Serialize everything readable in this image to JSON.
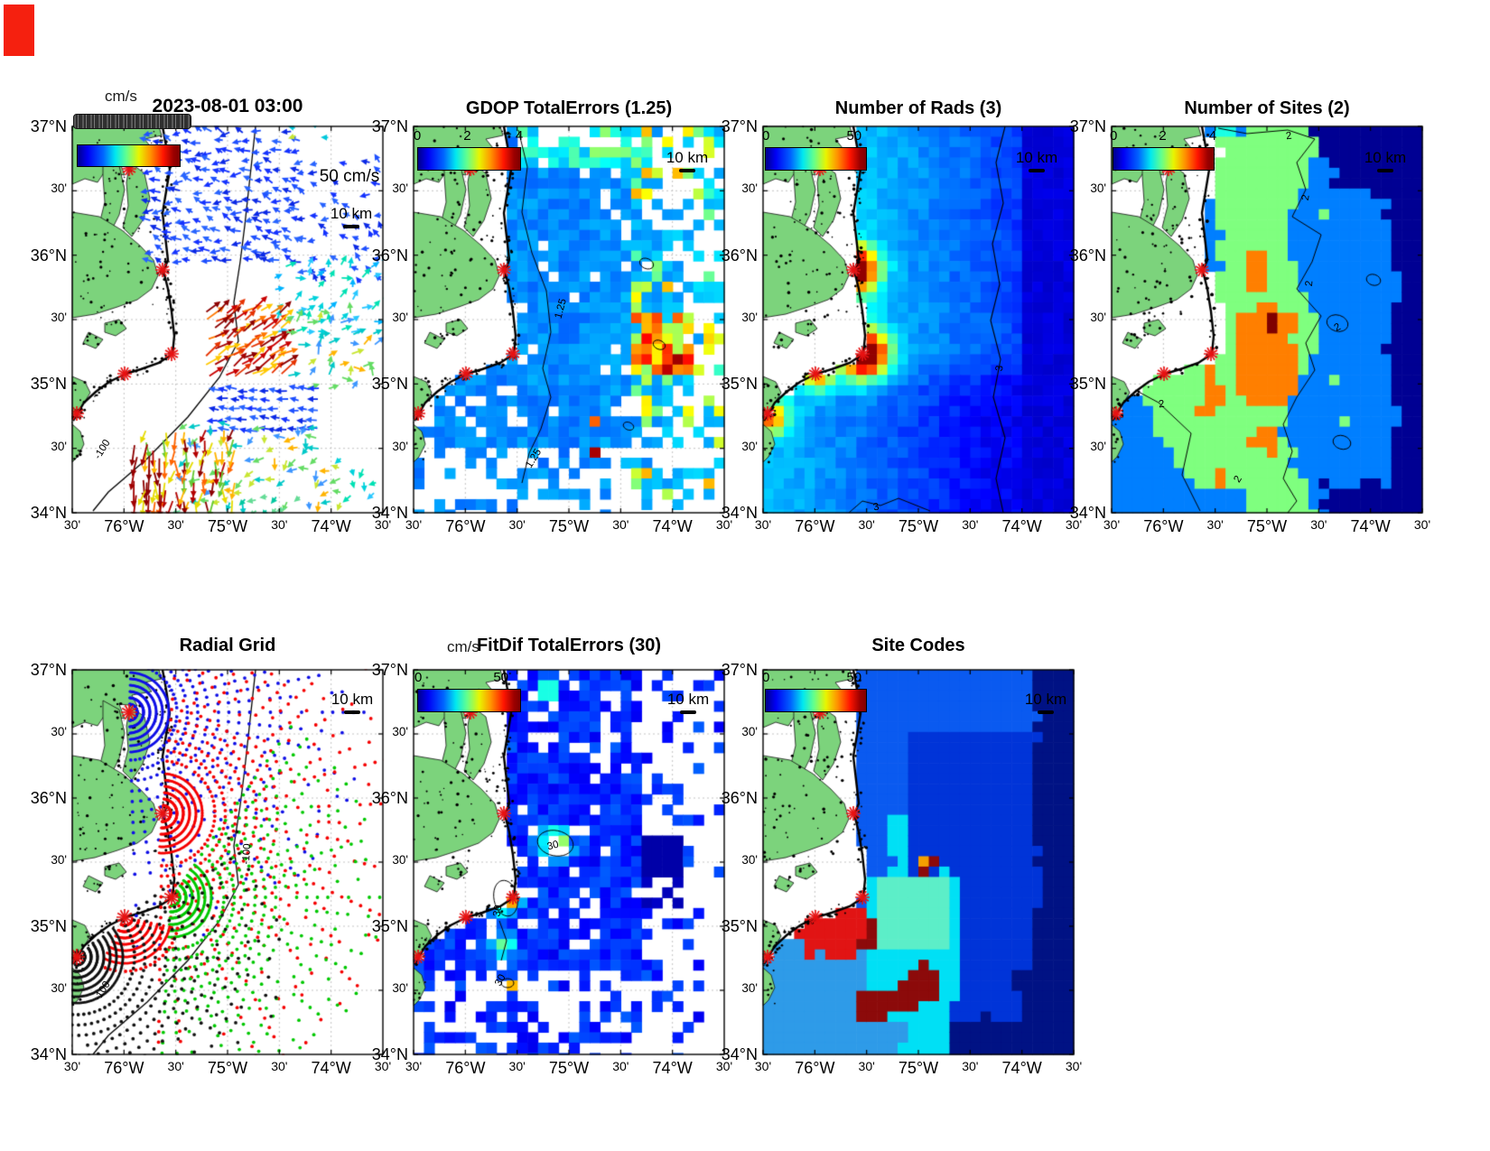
{
  "corner_box": {
    "color": "#F5200F"
  },
  "axes": {
    "x_tick_labels": [
      "30'",
      "76°W",
      "30'",
      "75°W",
      "30'",
      "74°W",
      "30'"
    ],
    "y_tick_labels": [
      "37°N",
      "30'",
      "36°N",
      "30'",
      "35°N",
      "30'",
      "34°N"
    ]
  },
  "site_markers": {
    "symbol": "*",
    "color": "#E81212",
    "count": 5
  },
  "panels": [
    {
      "id": "surface-currents",
      "title": "2023-08-01 03:00",
      "colorbar_label": "cm/s",
      "colorbar_ticks": [],
      "annotations": {
        "vector_scale": "50 cm/s",
        "distance_scale": "10 km"
      },
      "contour_labels": [
        "-100"
      ]
    },
    {
      "id": "gdop-total-errors",
      "title": "GDOP TotalErrors (1.25)",
      "colorbar_ticks": [
        "0",
        "2",
        "4"
      ],
      "annotations": {
        "distance_scale": "10 km"
      },
      "contour_labels": [
        "1.25",
        "1.25"
      ]
    },
    {
      "id": "number-of-rads",
      "title": "Number of Rads (3)",
      "colorbar_ticks": [
        "0",
        "50"
      ],
      "annotations": {
        "distance_scale": "10 km"
      },
      "contour_labels": [
        "3",
        "3"
      ]
    },
    {
      "id": "number-of-sites",
      "title": "Number of Sites (2)",
      "colorbar_ticks": [
        "0",
        "2",
        "4"
      ],
      "annotations": {
        "distance_scale": "10 km"
      },
      "contour_labels": [
        "2",
        "2",
        "2",
        "2",
        "2",
        "2"
      ]
    },
    {
      "id": "radial-grid",
      "title": "Radial Grid",
      "colorbar_ticks": [],
      "annotations": {
        "distance_scale": "10 km"
      },
      "contour_labels": [
        "-100",
        "-100"
      ]
    },
    {
      "id": "fitdif-total-errors",
      "title": "FitDif TotalErrors (30)",
      "colorbar_label": "cm/s",
      "colorbar_ticks": [
        "0",
        "50"
      ],
      "annotations": {
        "distance_scale": "10 km"
      },
      "contour_labels": [
        "30",
        "30",
        "30"
      ]
    },
    {
      "id": "site-codes",
      "title": "Site Codes",
      "colorbar_ticks": [
        "0",
        "50"
      ],
      "annotations": {
        "distance_scale": "10 km"
      },
      "contour_labels": []
    }
  ],
  "chart_data": [
    {
      "type": "scatter",
      "subtype": "vector-field",
      "title": "2023-08-01 03:00",
      "units": "cm/s",
      "vector_scale_value": 50,
      "colormap": "jet",
      "x_range_lon_W": [
        76.5,
        73.5
      ],
      "y_range_lat_N": [
        34,
        37
      ],
      "annotations": [
        "cm/s",
        "50 cm/s",
        "10 km",
        "-100 m isobath"
      ],
      "summary": "Surface current vectors: weak blue (~10 cm/s) vectors flowing W/SW north of 36N; strong dark-red (~50 cm/s) NE-directed jet east of Cape Hatteras; yellow/red southward vectors south of the cape."
    },
    {
      "type": "heatmap",
      "title": "GDOP TotalErrors (1.25)",
      "colorbar_range": [
        0,
        4
      ],
      "colorbar_ticks": [
        0,
        2,
        4
      ],
      "contour_level": 1.25,
      "colormap": "jet",
      "x_range_lon_W": [
        76.5,
        73.5
      ],
      "y_range_lat_N": [
        34,
        37
      ],
      "summary": "GDOP error mostly ~1 (blue) over coverage area; isolated yellow/red cells (2.5-4) along the eastern data edge; white = no data."
    },
    {
      "type": "heatmap",
      "title": "Number of Rads (3)",
      "colorbar_range": [
        0,
        50
      ],
      "colorbar_ticks": [
        0,
        50
      ],
      "contour_level": 3,
      "colormap": "jet",
      "x_range_lon_W": [
        76.5,
        73.5
      ],
      "y_range_lat_N": [
        34,
        37
      ],
      "summary": "Radial count peaks (dark red ~50) just offshore of each radar site, decreasing to ~3-5 (dark blue) far offshore."
    },
    {
      "type": "heatmap",
      "title": "Number of Sites (2)",
      "colorbar_range": [
        0,
        4
      ],
      "colorbar_ticks": [
        0,
        2,
        4
      ],
      "contour_level": 2,
      "colormap": "jet",
      "x_range_lon_W": [
        76.5,
        73.5
      ],
      "y_range_lat_N": [
        34,
        37
      ],
      "summary": "Mostly 2 sites (green) nearshore, 3 sites (orange patches) mid-shelf, one 4-site cell (dark red), 1 site (blue) offshore, 0 (navy) at far east."
    },
    {
      "type": "scatter",
      "title": "Radial Grid",
      "x_range_lon_W": [
        76.5,
        73.5
      ],
      "y_range_lat_N": [
        34,
        37
      ],
      "series": [
        {
          "name": "site-1-radials",
          "color": "blue"
        },
        {
          "name": "site-2-radials",
          "color": "red"
        },
        {
          "name": "site-3-radials",
          "color": "green"
        },
        {
          "name": "site-4-radials",
          "color": "red"
        },
        {
          "name": "site-5-radials",
          "color": "black"
        }
      ],
      "summary": "Polar measurement grids (range arcs and bearing rays of dots) fanning seaward from five radar sites marked by red asterisks; -100 m isobath drawn."
    },
    {
      "type": "heatmap",
      "title": "FitDif TotalErrors (30)",
      "units": "cm/s",
      "colorbar_range": [
        0,
        50
      ],
      "colorbar_ticks": [
        0,
        50
      ],
      "contour_level": 30,
      "colormap": "jet",
      "x_range_lon_W": [
        76.5,
        73.5
      ],
      "y_range_lat_N": [
        34,
        37
      ],
      "summary": "Fit-difference errors ~5-15 cm/s (blue) with two >30 cm/s hot spots (yellow/red, contoured) east and southeast of Cape Hatteras."
    },
    {
      "type": "heatmap",
      "title": "Site Codes",
      "colorbar_range": [
        0,
        50
      ],
      "colorbar_ticks": [
        0,
        50
      ],
      "x_range_lon_W": [
        76.5,
        73.5
      ],
      "y_range_lat_N": [
        34,
        37
      ],
      "summary": "Discrete site-combination code map: royal/deep blue and navy offshore regions, cyan and turquoise mid-shelf band, bright red patch at Cape Hatteras, small dark-red and orange patches, sky-blue region in the southwest."
    }
  ]
}
